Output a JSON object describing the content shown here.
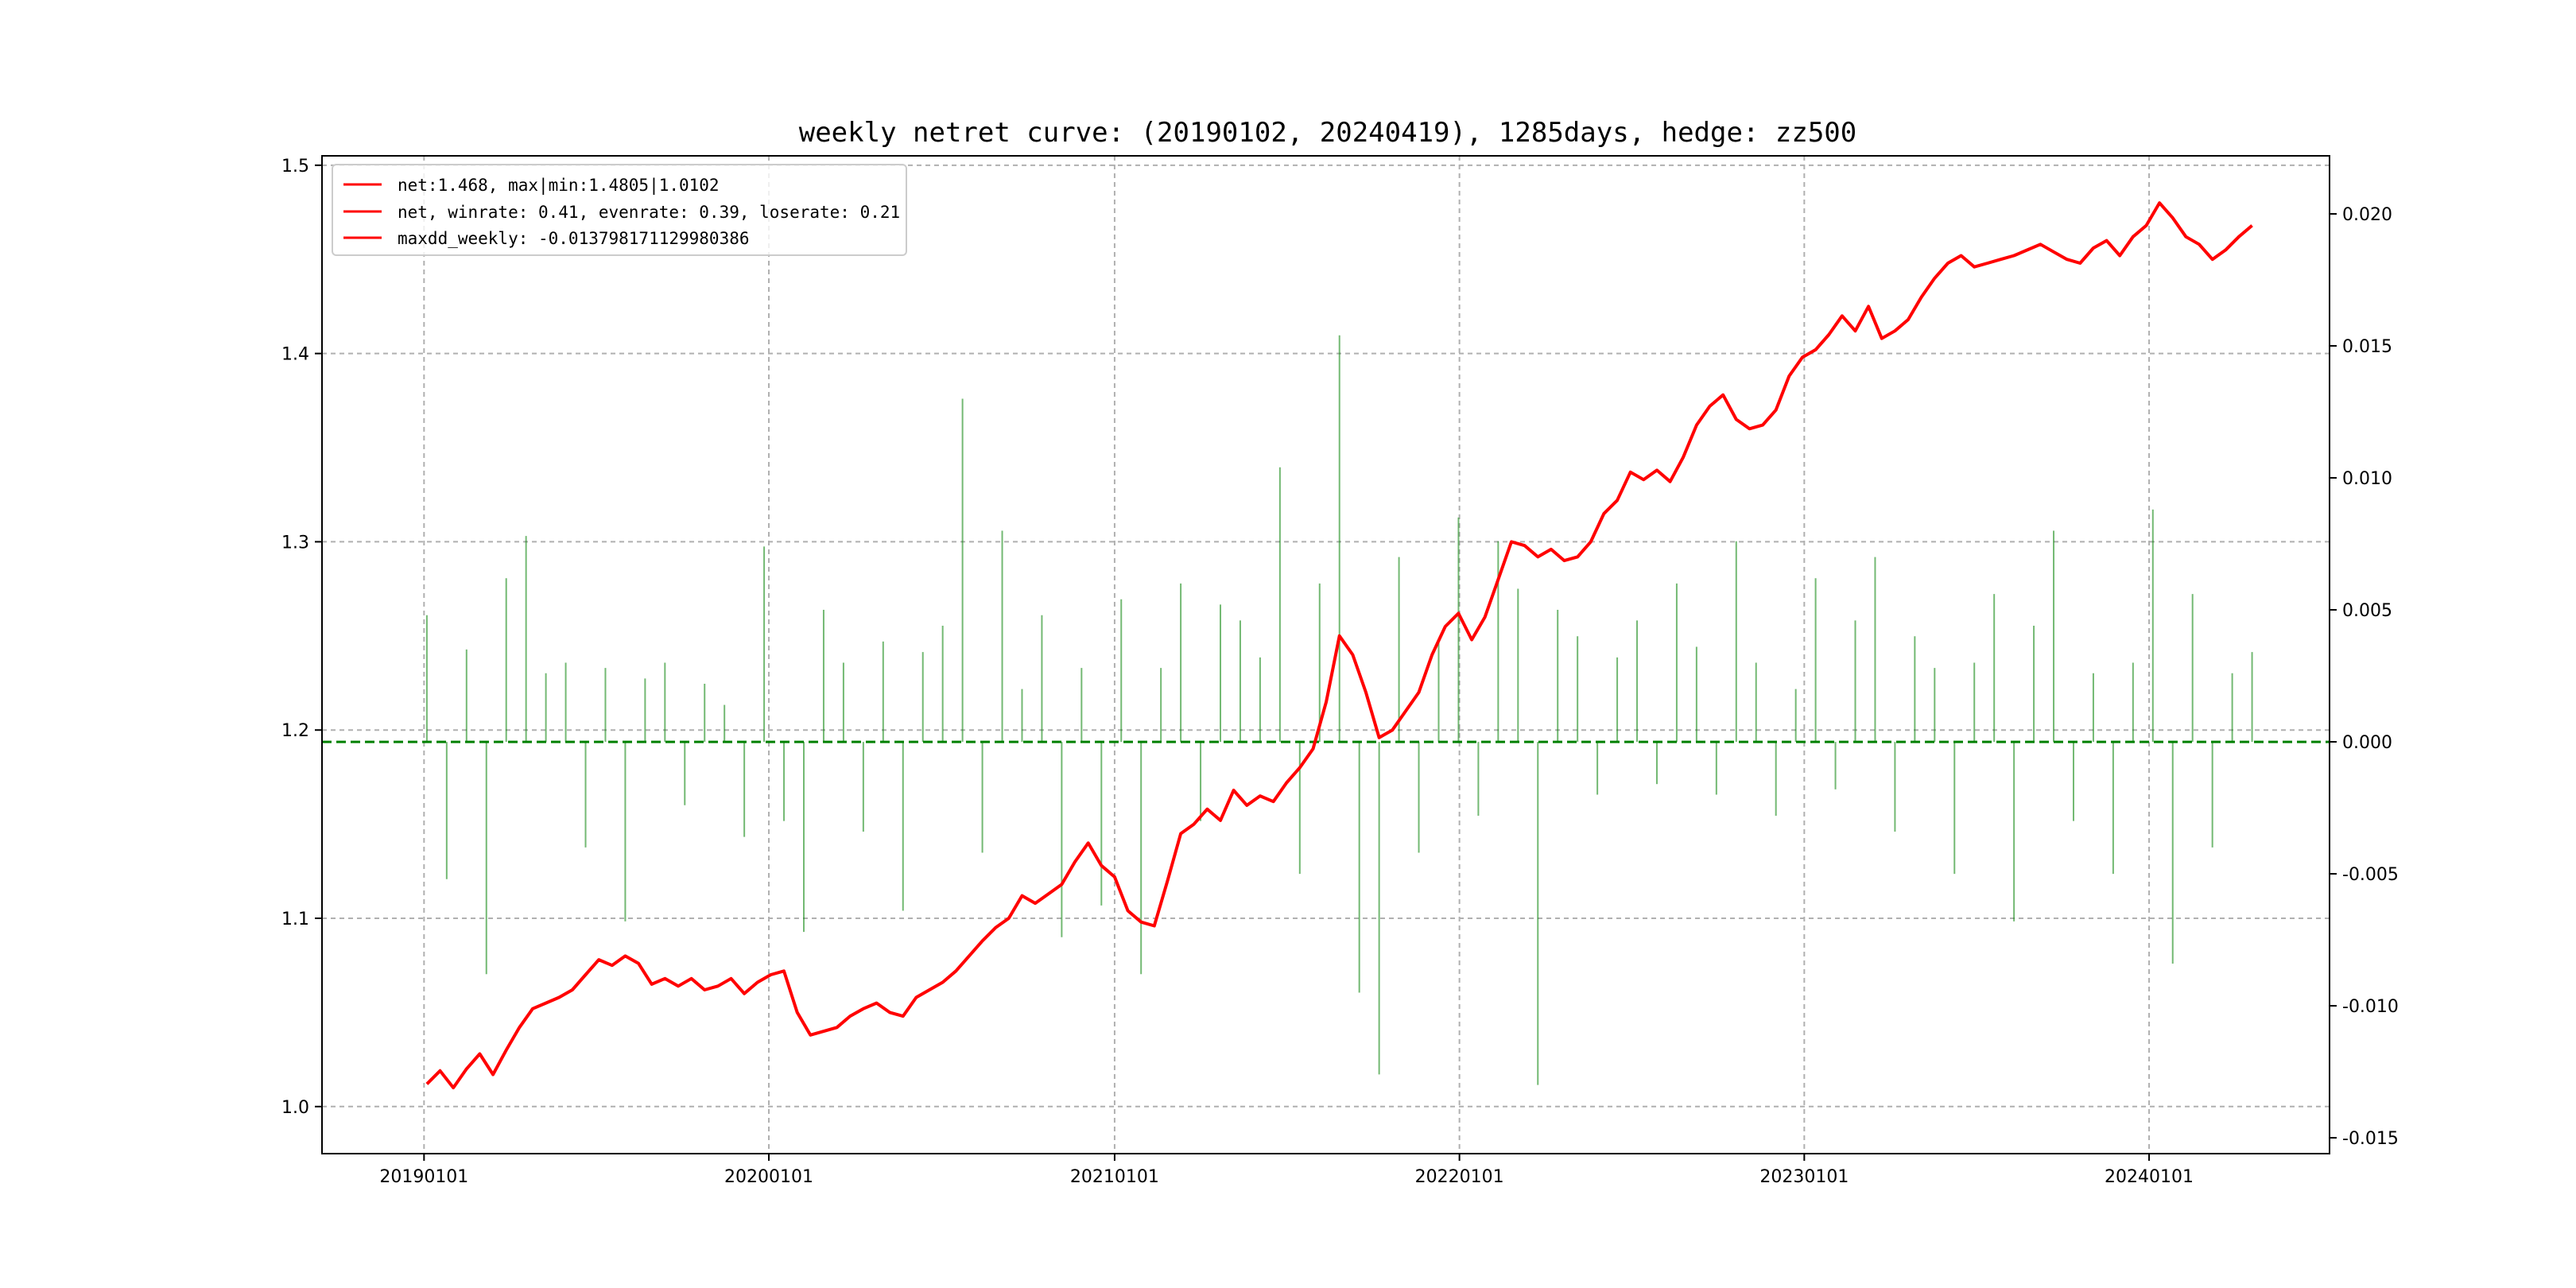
{
  "chart_data": {
    "type": "line",
    "title": "weekly netret curve: (20190102, 20240419), 1285days, hedge: zz500",
    "xlabel": "",
    "ylabel": "",
    "x_ticks": [
      "20190101",
      "20200101",
      "20210101",
      "20220101",
      "20230101",
      "20240101"
    ],
    "y_left_ticks": [
      "1.0",
      "1.1",
      "1.2",
      "1.3",
      "1.4",
      "1.5"
    ],
    "y_right_ticks": [
      "-0.015",
      "-0.010",
      "-0.005",
      "0.000",
      "0.005",
      "0.010",
      "0.015",
      "0.020"
    ],
    "ylim_left": [
      0.975,
      1.505
    ],
    "ylim_right": [
      -0.0156,
      0.0222
    ],
    "x_range": [
      "2018-09-15",
      "2024-07-10"
    ],
    "grid": true,
    "legend_position": "upper-left",
    "legend": [
      "net:1.468, max|min:1.4805|1.0102",
      "net, winrate: 0.41, evenrate: 0.39, loserate: 0.21",
      "maxdd_weekly: -0.013798171129980386"
    ],
    "colors": {
      "net_line": "#ff0000",
      "bars": "#008000",
      "zero_line": "#008000",
      "grid": "#b0b0b0"
    },
    "series": [
      {
        "name": "net:1.468, max|min:1.4805|1.0102",
        "axis": "left",
        "kind": "line",
        "x": [
          "2019-01-04",
          "2019-01-18",
          "2019-02-01",
          "2019-02-15",
          "2019-03-01",
          "2019-03-15",
          "2019-03-29",
          "2019-04-12",
          "2019-04-26",
          "2019-05-10",
          "2019-05-24",
          "2019-06-07",
          "2019-06-21",
          "2019-07-05",
          "2019-07-19",
          "2019-08-02",
          "2019-08-16",
          "2019-08-30",
          "2019-09-13",
          "2019-09-27",
          "2019-10-11",
          "2019-10-25",
          "2019-11-08",
          "2019-11-22",
          "2019-12-06",
          "2019-12-20",
          "2020-01-03",
          "2020-01-17",
          "2020-01-31",
          "2020-02-14",
          "2020-02-28",
          "2020-03-13",
          "2020-03-27",
          "2020-04-10",
          "2020-04-24",
          "2020-05-08",
          "2020-05-22",
          "2020-06-05",
          "2020-06-19",
          "2020-07-03",
          "2020-07-17",
          "2020-07-31",
          "2020-08-14",
          "2020-08-28",
          "2020-09-11",
          "2020-09-25",
          "2020-10-09",
          "2020-10-23",
          "2020-11-06",
          "2020-11-20",
          "2020-12-04",
          "2020-12-18",
          "2021-01-01",
          "2021-01-15",
          "2021-01-29",
          "2021-02-12",
          "2021-02-26",
          "2021-03-12",
          "2021-03-26",
          "2021-04-09",
          "2021-04-23",
          "2021-05-07",
          "2021-05-21",
          "2021-06-04",
          "2021-06-18",
          "2021-07-02",
          "2021-07-16",
          "2021-07-30",
          "2021-08-13",
          "2021-08-27",
          "2021-09-10",
          "2021-09-24",
          "2021-10-08",
          "2021-10-22",
          "2021-11-05",
          "2021-11-19",
          "2021-12-03",
          "2021-12-17",
          "2021-12-31",
          "2022-01-14",
          "2022-01-28",
          "2022-02-11",
          "2022-02-25",
          "2022-03-11",
          "2022-03-25",
          "2022-04-08",
          "2022-04-22",
          "2022-05-06",
          "2022-05-20",
          "2022-06-03",
          "2022-06-17",
          "2022-07-01",
          "2022-07-15",
          "2022-07-29",
          "2022-08-12",
          "2022-08-26",
          "2022-09-09",
          "2022-09-23",
          "2022-10-07",
          "2022-10-21",
          "2022-11-04",
          "2022-11-18",
          "2022-12-02",
          "2022-12-16",
          "2022-12-30",
          "2023-01-13",
          "2023-01-27",
          "2023-02-10",
          "2023-02-24",
          "2023-03-10",
          "2023-03-24",
          "2023-04-07",
          "2023-04-21",
          "2023-05-05",
          "2023-05-19",
          "2023-06-02",
          "2023-06-16",
          "2023-06-30",
          "2023-07-14",
          "2023-07-28",
          "2023-08-11",
          "2023-08-25",
          "2023-09-08",
          "2023-09-22",
          "2023-10-06",
          "2023-10-20",
          "2023-11-03",
          "2023-11-17",
          "2023-12-01",
          "2023-12-15",
          "2023-12-29",
          "2024-01-12",
          "2024-01-26",
          "2024-02-09",
          "2024-02-23",
          "2024-03-08",
          "2024-03-22",
          "2024-04-05",
          "2024-04-19"
        ],
        "values": [
          1.012,
          1.019,
          1.01,
          1.02,
          1.028,
          1.017,
          1.03,
          1.042,
          1.052,
          1.055,
          1.058,
          1.062,
          1.07,
          1.078,
          1.075,
          1.08,
          1.076,
          1.065,
          1.068,
          1.064,
          1.068,
          1.062,
          1.064,
          1.068,
          1.06,
          1.066,
          1.07,
          1.072,
          1.05,
          1.038,
          1.04,
          1.042,
          1.048,
          1.052,
          1.055,
          1.05,
          1.048,
          1.058,
          1.062,
          1.066,
          1.072,
          1.08,
          1.088,
          1.095,
          1.1,
          1.112,
          1.108,
          1.113,
          1.118,
          1.13,
          1.14,
          1.128,
          1.122,
          1.104,
          1.098,
          1.096,
          1.12,
          1.145,
          1.15,
          1.158,
          1.152,
          1.168,
          1.16,
          1.165,
          1.162,
          1.172,
          1.18,
          1.19,
          1.215,
          1.25,
          1.24,
          1.22,
          1.196,
          1.2,
          1.21,
          1.22,
          1.24,
          1.255,
          1.262,
          1.248,
          1.26,
          1.28,
          1.3,
          1.298,
          1.292,
          1.296,
          1.29,
          1.292,
          1.3,
          1.315,
          1.322,
          1.337,
          1.333,
          1.338,
          1.332,
          1.345,
          1.362,
          1.372,
          1.378,
          1.365,
          1.36,
          1.362,
          1.37,
          1.388,
          1.398,
          1.402,
          1.41,
          1.42,
          1.412,
          1.425,
          1.408,
          1.412,
          1.418,
          1.43,
          1.44,
          1.448,
          1.452,
          1.446,
          1.448,
          1.45,
          1.452,
          1.455,
          1.458,
          1.454,
          1.45,
          1.448,
          1.456,
          1.46,
          1.452,
          1.462,
          1.468,
          1.48,
          1.472,
          1.462,
          1.458,
          1.45,
          1.455,
          1.462,
          1.468
        ]
      },
      {
        "name": "",
        "axis": "right",
        "kind": "bar",
        "x": [
          "2019-01-04",
          "2019-01-25",
          "2019-02-15",
          "2019-03-08",
          "2019-03-29",
          "2019-04-19",
          "2019-05-10",
          "2019-05-31",
          "2019-06-21",
          "2019-07-12",
          "2019-08-02",
          "2019-08-23",
          "2019-09-13",
          "2019-10-04",
          "2019-10-25",
          "2019-11-15",
          "2019-12-06",
          "2019-12-27",
          "2020-01-17",
          "2020-02-07",
          "2020-02-28",
          "2020-03-20",
          "2020-04-10",
          "2020-05-01",
          "2020-05-22",
          "2020-06-12",
          "2020-07-03",
          "2020-07-24",
          "2020-08-14",
          "2020-09-04",
          "2020-09-25",
          "2020-10-16",
          "2020-11-06",
          "2020-11-27",
          "2020-12-18",
          "2021-01-08",
          "2021-01-29",
          "2021-02-19",
          "2021-03-12",
          "2021-04-02",
          "2021-04-23",
          "2021-05-14",
          "2021-06-04",
          "2021-06-25",
          "2021-07-16",
          "2021-08-06",
          "2021-08-27",
          "2021-09-17",
          "2021-10-08",
          "2021-10-29",
          "2021-11-19",
          "2021-12-10",
          "2021-12-31",
          "2022-01-21",
          "2022-02-11",
          "2022-03-04",
          "2022-03-25",
          "2022-04-15",
          "2022-05-06",
          "2022-05-27",
          "2022-06-17",
          "2022-07-08",
          "2022-07-29",
          "2022-08-19",
          "2022-09-09",
          "2022-09-30",
          "2022-10-21",
          "2022-11-11",
          "2022-12-02",
          "2022-12-23",
          "2023-01-13",
          "2023-02-03",
          "2023-02-24",
          "2023-03-17",
          "2023-04-07",
          "2023-04-28",
          "2023-05-19",
          "2023-06-09",
          "2023-06-30",
          "2023-07-21",
          "2023-08-11",
          "2023-09-01",
          "2023-09-22",
          "2023-10-13",
          "2023-11-03",
          "2023-11-24",
          "2023-12-15",
          "2024-01-05",
          "2024-01-26",
          "2024-02-16",
          "2024-03-08",
          "2024-03-29",
          "2024-04-19"
        ],
        "values": [
          0.0048,
          -0.0052,
          0.0035,
          -0.0088,
          0.0062,
          0.0078,
          0.0026,
          0.003,
          -0.004,
          0.0028,
          -0.0068,
          0.0024,
          0.003,
          -0.0024,
          0.0022,
          0.0014,
          -0.0036,
          0.0074,
          -0.003,
          -0.0072,
          0.005,
          0.003,
          -0.0034,
          0.0038,
          -0.0064,
          0.0034,
          0.0044,
          0.013,
          -0.0042,
          0.008,
          0.002,
          0.0048,
          -0.0074,
          0.0028,
          -0.0062,
          0.0054,
          -0.0088,
          0.0028,
          0.006,
          -0.003,
          0.0052,
          0.0046,
          0.0032,
          0.0104,
          -0.005,
          0.006,
          0.0154,
          -0.0095,
          -0.0126,
          0.007,
          -0.0042,
          0.0038,
          0.0085,
          -0.0028,
          0.0076,
          0.0058,
          -0.013,
          0.005,
          0.004,
          -0.002,
          0.0032,
          0.0046,
          -0.0016,
          0.006,
          0.0036,
          -0.002,
          0.0076,
          0.003,
          -0.0028,
          0.002,
          0.0062,
          -0.0018,
          0.0046,
          0.007,
          -0.0034,
          0.004,
          0.0028,
          -0.005,
          0.003,
          0.0056,
          -0.0068,
          0.0044,
          0.008,
          -0.003,
          0.0026,
          -0.005,
          0.003,
          0.0088,
          -0.0084,
          0.0056,
          -0.004,
          0.0026,
          0.0034
        ]
      }
    ]
  }
}
